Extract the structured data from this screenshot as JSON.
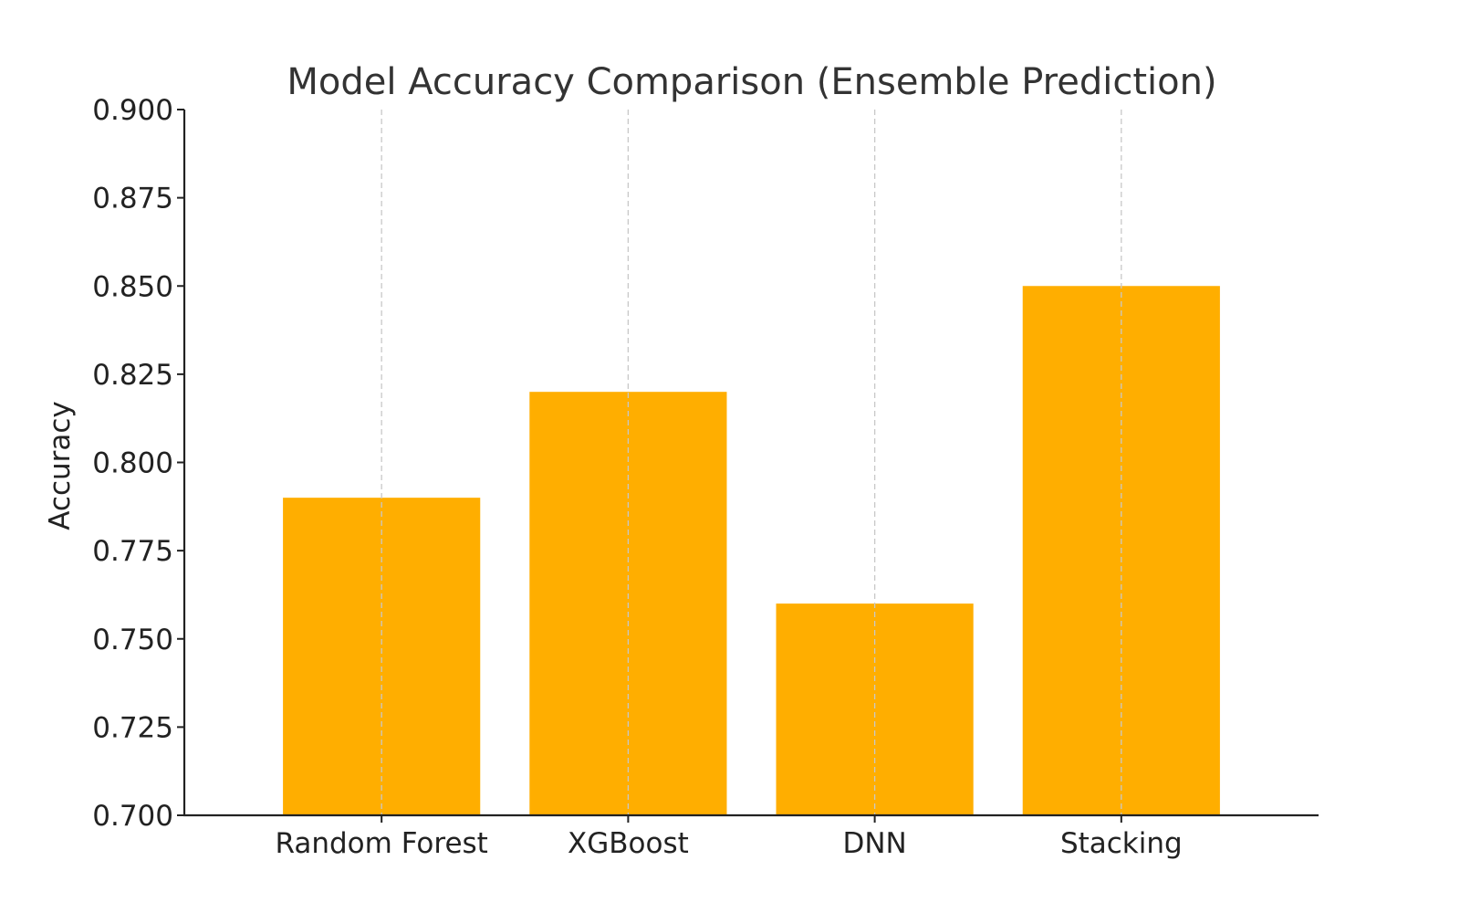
{
  "chart_data": {
    "type": "bar",
    "title": "Model Accuracy Comparison (Ensemble Prediction)",
    "xlabel": "",
    "ylabel": "Accuracy",
    "categories": [
      "Random Forest",
      "XGBoost",
      "DNN",
      "Stacking"
    ],
    "values": [
      0.79,
      0.82,
      0.76,
      0.85
    ],
    "ylim": [
      0.7,
      0.9
    ],
    "yticks": [
      "0.700",
      "0.725",
      "0.750",
      "0.775",
      "0.800",
      "0.825",
      "0.850",
      "0.875",
      "0.900"
    ],
    "grid": "vertical dashed",
    "legend": "none",
    "bar_color": "#FFAE00"
  }
}
